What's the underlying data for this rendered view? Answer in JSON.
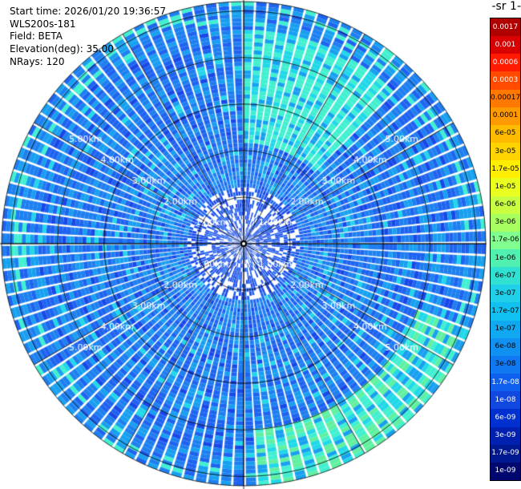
{
  "info": {
    "start_time": "Start time: 2026/01/20 19:36:57",
    "instrument": "WLS200s-181",
    "field": "Field: BETA",
    "elevation": "Elevation(deg): 35.00",
    "nrays": "NRays: 120"
  },
  "colorbar": {
    "unit_label": "-1 sr-",
    "ticks": [
      "0.0017",
      "0.001",
      "0.0006",
      "0.0003",
      "0.00017",
      "0.0001",
      "6e-05",
      "3e-05",
      "1.7e-05",
      "1e-05",
      "6e-06",
      "3e-06",
      "1.7e-06",
      "1e-06",
      "6e-07",
      "3e-07",
      "1.7e-07",
      "1e-07",
      "6e-08",
      "3e-08",
      "1.7e-08",
      "1e-08",
      "6e-09",
      "3e-09",
      "1.7e-09",
      "1e-09"
    ],
    "colors": [
      "#b00000",
      "#d80000",
      "#ff1a00",
      "#ff4a00",
      "#ff7800",
      "#ff9a00",
      "#ffbb00",
      "#ffd400",
      "#ffee00",
      "#e8ff20",
      "#c8ff40",
      "#a8ff60",
      "#80ff90",
      "#50f0b0",
      "#30e0d0",
      "#20d0e8",
      "#10c0f0",
      "#10a8f0",
      "#1090f0",
      "#1078f0",
      "#1060f0",
      "#1048e0",
      "#0030d0",
      "#0020b0",
      "#001890",
      "#000870"
    ],
    "light_text_indices": [
      0,
      1,
      2,
      3,
      20,
      21,
      22,
      23,
      24,
      25
    ]
  },
  "chart_data": {
    "type": "heatmap",
    "title": "",
    "projection": "polar (PPI scan)",
    "elevation_deg": 35.0,
    "n_rays": 120,
    "range_ring_labels_km": [
      "1.00km",
      "2.00km",
      "3.00km",
      "4.00km",
      "5.00km"
    ],
    "max_range_km": 5.2,
    "colorscale": "jet (reversed, log-scaled backscatter)",
    "dominant_value_range": [
      "1e-08",
      "1.7e-07"
    ],
    "notable_features": [
      {
        "sector": "north-east",
        "value_range": [
          "1e-07",
          "1.7e-07"
        ],
        "description": "cyan band at mid-far range"
      },
      {
        "sector": "south-east",
        "value_range": [
          "3e-07",
          "1.7e-06"
        ],
        "description": "green/cyan arc at far range"
      }
    ],
    "grid": true
  }
}
